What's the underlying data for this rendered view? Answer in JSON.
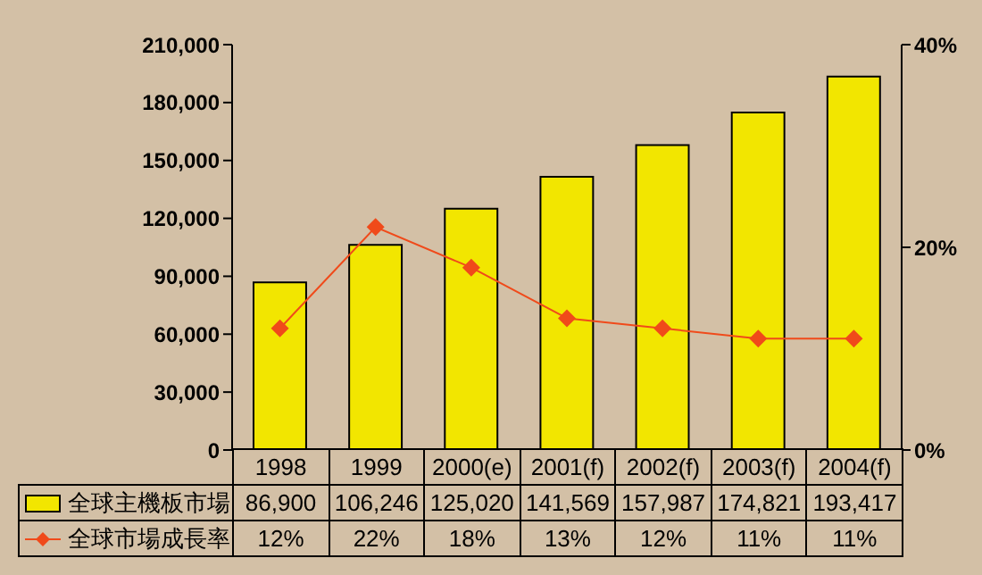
{
  "chart_data": {
    "type": "bar",
    "categories": [
      "1998",
      "1999",
      "2000(e)",
      "2001(f)",
      "2002(f)",
      "2003(f)",
      "2004(f)"
    ],
    "series": [
      {
        "name": "全球主機板市場",
        "color": "#f2e600",
        "values": [
          86900,
          106246,
          125020,
          141569,
          157987,
          174821,
          193417
        ],
        "value_labels": [
          "86,900",
          "106,246",
          "125,020",
          "141,569",
          "157,987",
          "174,821",
          "193,417"
        ]
      },
      {
        "name": "全球市場成長率",
        "type": "line",
        "axis": "y2",
        "color": "#f04a1a",
        "marker": "diamond",
        "values": [
          12,
          22,
          18,
          13,
          12,
          11,
          11
        ],
        "value_labels": [
          "12%",
          "22%",
          "18%",
          "13%",
          "12%",
          "11%",
          "11%"
        ]
      }
    ],
    "ylim": [
      0,
      210000
    ],
    "yticks": [
      {
        "value": 0,
        "label": "0"
      },
      {
        "value": 30000,
        "label": "30,000"
      },
      {
        "value": 60000,
        "label": "60,000"
      },
      {
        "value": 90000,
        "label": "90,000"
      },
      {
        "value": 120000,
        "label": "120,000"
      },
      {
        "value": 150000,
        "label": "150,000"
      },
      {
        "value": 180000,
        "label": "180,000"
      },
      {
        "value": 210000,
        "label": "210,000"
      }
    ],
    "y2lim": [
      0,
      40
    ],
    "y2ticks": [
      {
        "value": 0,
        "label": "0%"
      },
      {
        "value": 20,
        "label": "20%"
      },
      {
        "value": 40,
        "label": "40%"
      }
    ],
    "grid": false,
    "legend": "bottom"
  }
}
